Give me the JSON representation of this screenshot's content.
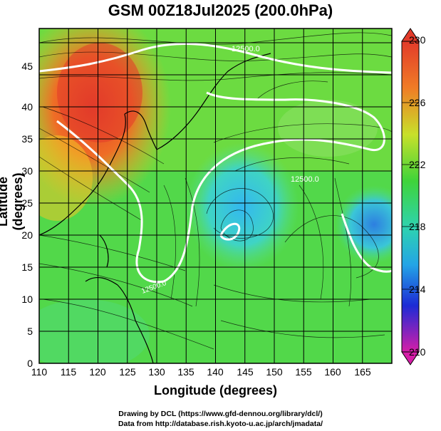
{
  "title": "GSM 00Z18Jul2025 (200.0hPa)",
  "xlabel": "Longitude (degrees)",
  "ylabel": "Latitude (degrees)",
  "credit_line1": "Drawing by DCL (https://www.gfd-dennou.org/library/dcl/)",
  "credit_line2": "Data from http://database.rish.kyoto-u.ac.jp/arch/jmadata/",
  "x_ticks": [
    "110",
    "115",
    "120",
    "125",
    "130",
    "135",
    "140",
    "145",
    "150",
    "155",
    "160",
    "165"
  ],
  "y_ticks": [
    "0",
    "5",
    "10",
    "15",
    "20",
    "25",
    "30",
    "35",
    "40",
    "45"
  ],
  "colorbar_ticks": [
    "230",
    "226",
    "222",
    "218",
    "214",
    "210"
  ],
  "contour_labels": [
    "12500.0",
    "12500.0",
    "12500.0"
  ],
  "colors": {
    "hot": "#e8402a",
    "warm": "#f5a623",
    "mid": "#7be04a",
    "cool": "#3ec9c9",
    "cold": "#2f6fe0",
    "contour": "#ffffff"
  }
}
